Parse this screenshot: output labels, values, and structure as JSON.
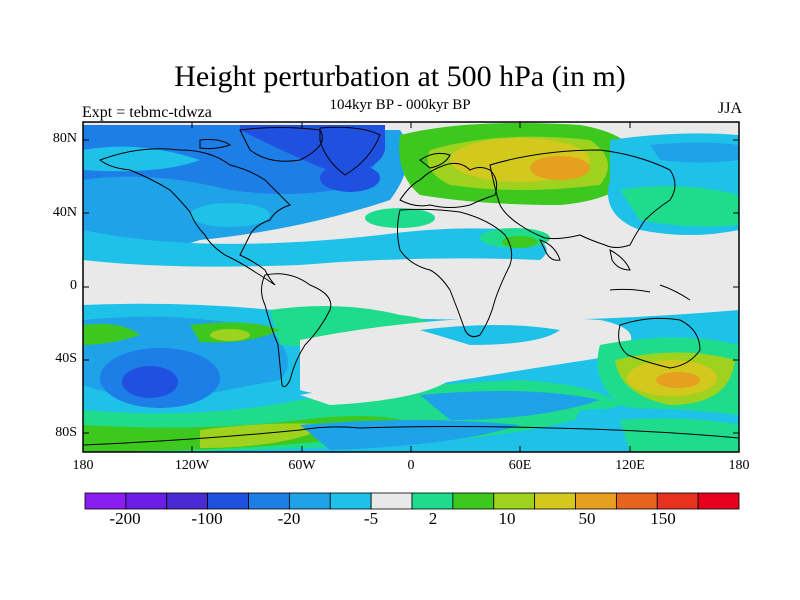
{
  "map": {
    "title": "Height perturbation at 500 hPa (in m)",
    "subtitle": "104kyr BP - 000kyr BP",
    "left_label": "Expt = tebmc-tdwza",
    "right_label": "JJA",
    "projection": "cylindrical equidistant",
    "lon_range": [
      -180,
      180
    ],
    "lat_range": [
      -90,
      90
    ],
    "lat_ticks": [
      "80N",
      "40N",
      "0",
      "40S",
      "80S"
    ],
    "lon_ticks": [
      "180",
      "120W",
      "60W",
      "0",
      "60E",
      "120E",
      "180"
    ]
  },
  "colorbar": {
    "colors": [
      "#8a1ef0",
      "#6a1ee6",
      "#4a2ad2",
      "#2050e0",
      "#1e7ee8",
      "#1ea2e8",
      "#1ec2e8",
      "#e9e9e9",
      "#1edc8c",
      "#3cc81e",
      "#9ed21e",
      "#d2c81e",
      "#e6a01e",
      "#e6641e",
      "#e6321e",
      "#e6001e"
    ],
    "labels": [
      "-200",
      "-100",
      "-20",
      "-5",
      "2",
      "10",
      "50",
      "150"
    ]
  }
}
